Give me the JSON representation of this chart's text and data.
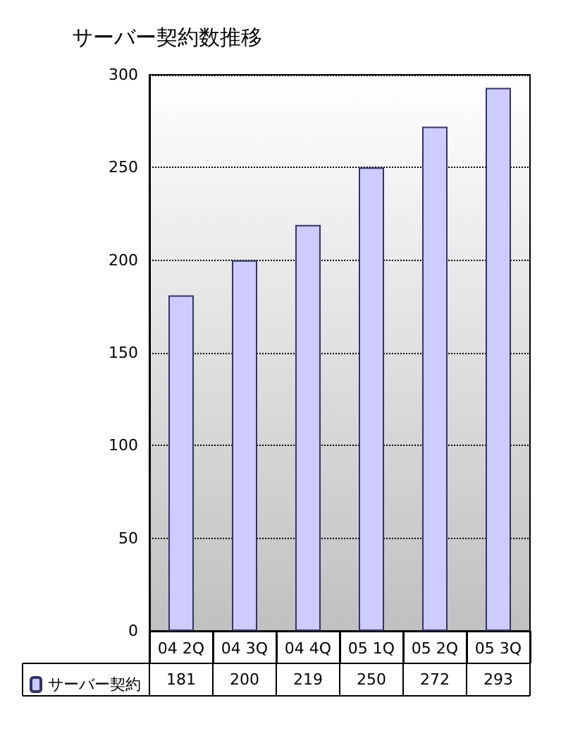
{
  "chart_data": {
    "type": "bar",
    "title": "サーバー契約数推移",
    "categories": [
      "04 2Q",
      "04 3Q",
      "04 4Q",
      "05 1Q",
      "05 2Q",
      "05 3Q"
    ],
    "series": [
      {
        "name": "サーバー契約",
        "color": "#ccccff",
        "values": [
          181,
          200,
          219,
          250,
          272,
          293
        ]
      }
    ],
    "ylim": [
      0,
      300
    ],
    "yticks": [
      0,
      50,
      100,
      150,
      200,
      250,
      300
    ],
    "grid": true,
    "data_labels": true,
    "legend": "bottom left"
  }
}
